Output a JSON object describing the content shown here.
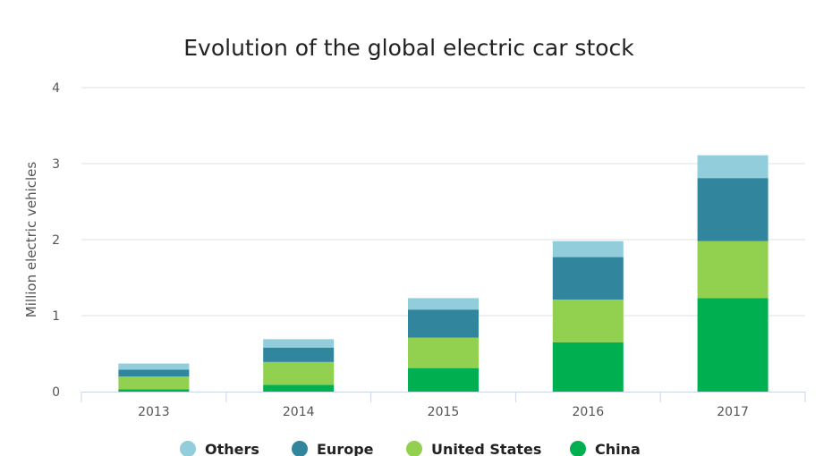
{
  "chart_data": {
    "type": "bar",
    "stacked": true,
    "title": "Evolution of the global electric car stock",
    "xlabel": "",
    "ylabel": "Million electric vehicles",
    "categories": [
      "2013",
      "2014",
      "2015",
      "2016",
      "2017"
    ],
    "ylim": [
      0,
      4
    ],
    "yticks": [
      "0",
      "1",
      "2",
      "3",
      "4"
    ],
    "grid": true,
    "legend_position": "bottom",
    "series": [
      {
        "name": "China",
        "color": "#00b050",
        "values": [
          0.03,
          0.09,
          0.31,
          0.65,
          1.23
        ]
      },
      {
        "name": "United States",
        "color": "#92d050",
        "values": [
          0.17,
          0.3,
          0.4,
          0.56,
          0.75
        ]
      },
      {
        "name": "Europe",
        "color": "#31859c",
        "values": [
          0.09,
          0.19,
          0.37,
          0.56,
          0.83
        ]
      },
      {
        "name": "Others",
        "color": "#92cddc",
        "values": [
          0.08,
          0.11,
          0.15,
          0.21,
          0.3
        ]
      }
    ],
    "legend_order": [
      "Others",
      "Europe",
      "United States",
      "China"
    ]
  }
}
